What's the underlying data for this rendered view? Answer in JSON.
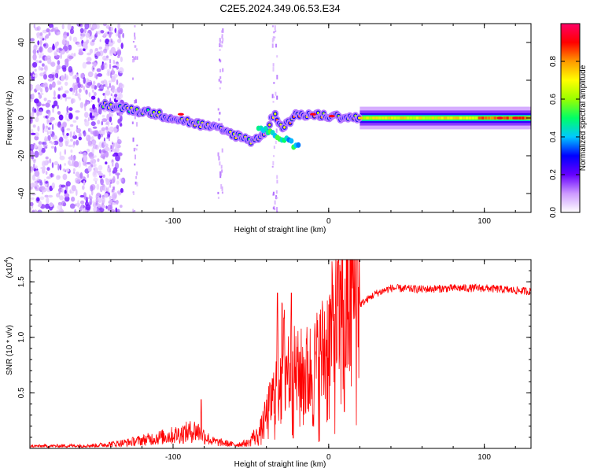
{
  "title": "C2E5.2024.349.06.53.E34",
  "spectrogram": {
    "type": "heatmap",
    "xlabel": "Height of straight line (km)",
    "ylabel": "Frequency (Hz)",
    "xlim": [
      -192,
      130
    ],
    "ylim": [
      -50,
      50
    ],
    "xticks": [
      -100,
      0,
      100
    ],
    "yticks": [
      -40,
      -20,
      0,
      20,
      40
    ],
    "colorbar": {
      "label": "Normalized spectral amplitude",
      "range": [
        0,
        1
      ],
      "ticks": [
        "0.0",
        "0.2",
        "0.4",
        "0.6",
        "0.8"
      ],
      "colors": [
        "#ffffff",
        "#cc99ff",
        "#6600ff",
        "#0000ff",
        "#00c8ff",
        "#00ff66",
        "#99ff00",
        "#ffff00",
        "#ff9900",
        "#ff0000",
        "#ff0066"
      ]
    },
    "ridge": [
      {
        "x": -145,
        "f": 7
      },
      {
        "x": -130,
        "f": 5
      },
      {
        "x": -110,
        "f": 2
      },
      {
        "x": -90,
        "f": -2
      },
      {
        "x": -70,
        "f": -6
      },
      {
        "x": -50,
        "f": -12
      },
      {
        "x": -40,
        "f": -8
      },
      {
        "x": -35,
        "f": 3
      },
      {
        "x": -30,
        "f": -5
      },
      {
        "x": -20,
        "f": 2
      },
      {
        "x": 0,
        "f": 1
      },
      {
        "x": 20,
        "f": 0
      },
      {
        "x": 60,
        "f": 0
      },
      {
        "x": 100,
        "f": 0
      },
      {
        "x": 130,
        "f": 0
      }
    ]
  },
  "snr": {
    "type": "line",
    "xlabel": "Height of straight line (km)",
    "ylabel": "SNR (10 * v/v)",
    "scale_label": "(x10",
    "scale_exp": "4",
    "xlim": [
      -192,
      130
    ],
    "ylim": [
      0,
      1.7
    ],
    "xticks": [
      -100,
      0,
      100
    ],
    "yticks": [
      0.5,
      1.0,
      1.5
    ],
    "ytick_labels": [
      "0.5",
      "1.0",
      "1.5"
    ],
    "color": "#ff0000",
    "envelope": [
      {
        "x": -192,
        "y": 0.03
      },
      {
        "x": -150,
        "y": 0.04
      },
      {
        "x": -130,
        "y": 0.08
      },
      {
        "x": -100,
        "y": 0.18
      },
      {
        "x": -85,
        "y": 0.25
      },
      {
        "x": -75,
        "y": 0.1
      },
      {
        "x": -60,
        "y": 0.05
      },
      {
        "x": -45,
        "y": 0.1
      },
      {
        "x": -35,
        "y": 0.4
      },
      {
        "x": -30,
        "y": 0.7
      },
      {
        "x": -25,
        "y": 0.6
      },
      {
        "x": -20,
        "y": 0.55
      },
      {
        "x": -10,
        "y": 0.6
      },
      {
        "x": 0,
        "y": 0.8
      },
      {
        "x": 5,
        "y": 0.95
      },
      {
        "x": 10,
        "y": 1.0
      },
      {
        "x": 15,
        "y": 1.2
      },
      {
        "x": 20,
        "y": 1.3
      },
      {
        "x": 30,
        "y": 1.4
      },
      {
        "x": 40,
        "y": 1.45
      },
      {
        "x": 60,
        "y": 1.44
      },
      {
        "x": 80,
        "y": 1.45
      },
      {
        "x": 100,
        "y": 1.45
      },
      {
        "x": 130,
        "y": 1.42
      }
    ],
    "peaks": [
      {
        "x": -82,
        "y": 0.44
      },
      {
        "x": -33,
        "y": 1.4
      },
      {
        "x": -24,
        "y": 1.4
      },
      {
        "x": 9,
        "y": 1.7
      },
      {
        "x": 10,
        "y": 0.33
      }
    ]
  }
}
